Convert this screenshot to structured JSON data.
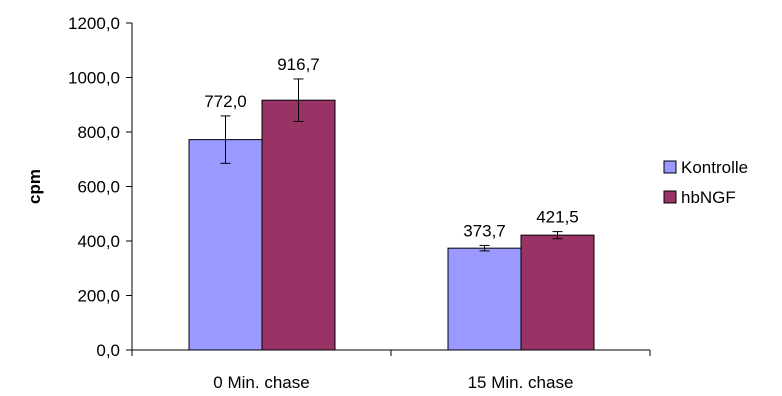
{
  "chart_data": {
    "type": "bar",
    "categories": [
      "0 Min. chase",
      "15 Min. chase"
    ],
    "series": [
      {
        "name": "Kontrolle",
        "color": "#9999FF",
        "values": [
          772.0,
          373.7
        ],
        "errors": [
          87,
          10
        ],
        "labels": [
          "772,0",
          "373,7"
        ]
      },
      {
        "name": "hbNGF",
        "color": "#993366",
        "values": [
          916.7,
          421.5
        ],
        "errors": [
          78,
          13
        ],
        "labels": [
          "916,7",
          "421,5"
        ]
      }
    ],
    "ylabel": "cpm",
    "xlabel": "",
    "title": "",
    "ylim": [
      0,
      1200
    ],
    "ytick_step": 200,
    "ytick_labels": [
      "0,0",
      "200,0",
      "400,0",
      "600,0",
      "800,0",
      "1000,0",
      "1200,0"
    ],
    "grid": false,
    "legend": "right"
  }
}
